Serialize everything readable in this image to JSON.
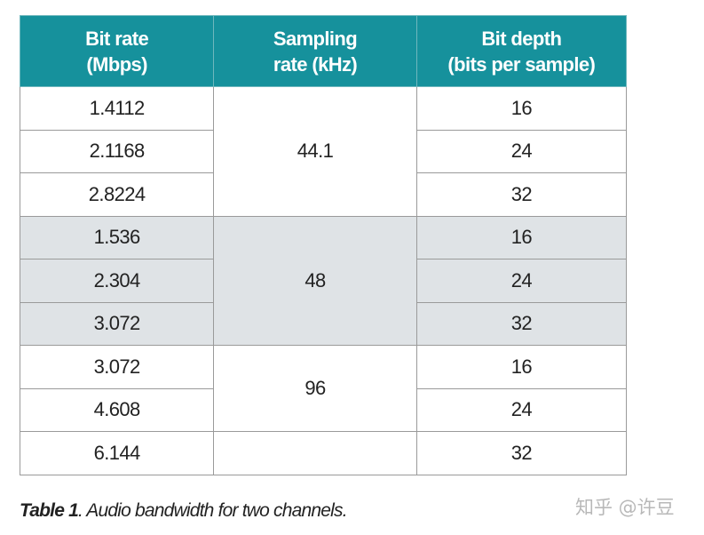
{
  "table": {
    "headers": [
      [
        "Bit rate",
        "(Mbps)"
      ],
      [
        "Sampling",
        "rate (kHz)"
      ],
      [
        "Bit depth",
        "(bits per sample)"
      ]
    ],
    "bit_rates": [
      "1.4112",
      "2.1168",
      "2.8224",
      "1.536",
      "2.304",
      "3.072",
      "3.072",
      "4.608",
      "6.144"
    ],
    "sampling_rates": [
      "44.1",
      "48",
      "96"
    ],
    "bit_depths": [
      "16",
      "24",
      "32",
      "16",
      "24",
      "32",
      "16",
      "24",
      "32"
    ],
    "colors": {
      "header": "#16919c",
      "shaded_group": "#dfe3e6"
    }
  },
  "caption": {
    "label": "Table 1",
    "text": ". Audio bandwidth for two channels."
  },
  "watermark": "知乎 @许豆"
}
